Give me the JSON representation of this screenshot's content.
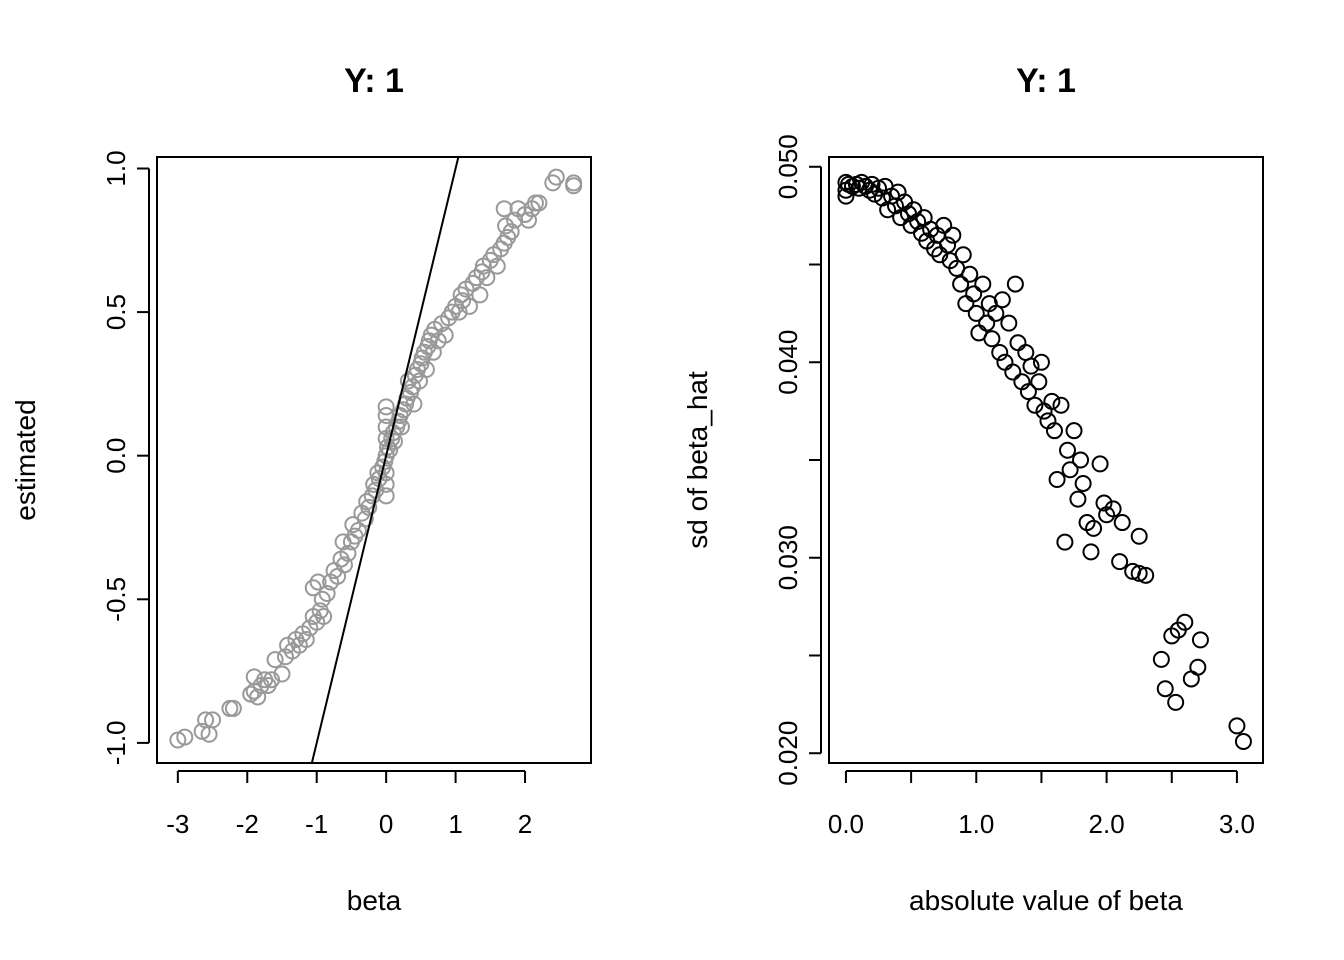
{
  "chart_data": [
    {
      "type": "scatter",
      "title": "Y: 1",
      "xlabel": "beta",
      "ylabel": "estimated",
      "xlim": [
        -3.3,
        2.95
      ],
      "ylim": [
        -1.07,
        1.04
      ],
      "xticks": [
        -3,
        -2,
        -1,
        0,
        1,
        2
      ],
      "xtick_labels": [
        "-3",
        "-2",
        "-1",
        "0",
        "1",
        "2"
      ],
      "yticks": [
        -1.0,
        -0.5,
        0.0,
        0.5,
        1.0
      ],
      "ytick_labels": [
        "-1.0",
        "-0.5",
        "0.0",
        "0.5",
        "1.0"
      ],
      "point_color": "#999999",
      "reference_line": {
        "intercept": 0,
        "slope": 1
      },
      "points": [
        [
          -3.0,
          -0.99
        ],
        [
          -2.9,
          -0.98
        ],
        [
          -2.65,
          -0.96
        ],
        [
          -2.6,
          -0.92
        ],
        [
          -2.5,
          -0.92
        ],
        [
          -2.55,
          -0.97
        ],
        [
          -2.25,
          -0.88
        ],
        [
          -2.2,
          -0.88
        ],
        [
          -1.95,
          -0.83
        ],
        [
          -1.9,
          -0.82
        ],
        [
          -1.85,
          -0.84
        ],
        [
          -1.9,
          -0.77
        ],
        [
          -1.8,
          -0.8
        ],
        [
          -1.75,
          -0.78
        ],
        [
          -1.7,
          -0.8
        ],
        [
          -1.65,
          -0.78
        ],
        [
          -1.6,
          -0.71
        ],
        [
          -1.5,
          -0.76
        ],
        [
          -1.45,
          -0.7
        ],
        [
          -1.42,
          -0.66
        ],
        [
          -1.35,
          -0.68
        ],
        [
          -1.3,
          -0.64
        ],
        [
          -1.25,
          -0.66
        ],
        [
          -1.2,
          -0.62
        ],
        [
          -1.15,
          -0.64
        ],
        [
          -1.1,
          -0.6
        ],
        [
          -1.05,
          -0.56
        ],
        [
          -1.0,
          -0.58
        ],
        [
          -0.95,
          -0.54
        ],
        [
          -0.9,
          -0.56
        ],
        [
          -1.05,
          -0.46
        ],
        [
          -0.98,
          -0.44
        ],
        [
          -0.92,
          -0.5
        ],
        [
          -0.85,
          -0.48
        ],
        [
          -0.8,
          -0.44
        ],
        [
          -0.75,
          -0.4
        ],
        [
          -0.7,
          -0.42
        ],
        [
          -0.65,
          -0.36
        ],
        [
          -0.62,
          -0.3
        ],
        [
          -0.6,
          -0.38
        ],
        [
          -0.55,
          -0.34
        ],
        [
          -0.5,
          -0.3
        ],
        [
          -0.48,
          -0.24
        ],
        [
          -0.45,
          -0.28
        ],
        [
          -0.4,
          -0.26
        ],
        [
          -0.35,
          -0.2
        ],
        [
          -0.3,
          -0.22
        ],
        [
          -0.28,
          -0.16
        ],
        [
          -0.25,
          -0.18
        ],
        [
          -0.2,
          -0.14
        ],
        [
          -0.18,
          -0.1
        ],
        [
          -0.15,
          -0.12
        ],
        [
          -0.12,
          -0.06
        ],
        [
          -0.1,
          -0.08
        ],
        [
          -0.05,
          -0.04
        ],
        [
          -0.02,
          -0.02
        ],
        [
          0.0,
          0.0
        ],
        [
          0.0,
          -0.14
        ],
        [
          0.0,
          -0.1
        ],
        [
          0.0,
          -0.06
        ],
        [
          0.0,
          0.06
        ],
        [
          0.0,
          0.1
        ],
        [
          0.0,
          0.14
        ],
        [
          0.0,
          0.17
        ],
        [
          0.02,
          0.03
        ],
        [
          0.05,
          0.02
        ],
        [
          0.08,
          0.06
        ],
        [
          0.1,
          0.08
        ],
        [
          0.12,
          0.05
        ],
        [
          0.15,
          0.1
        ],
        [
          0.18,
          0.12
        ],
        [
          0.2,
          0.14
        ],
        [
          0.22,
          0.1
        ],
        [
          0.25,
          0.16
        ],
        [
          0.28,
          0.18
        ],
        [
          0.3,
          0.2
        ],
        [
          0.32,
          0.26
        ],
        [
          0.35,
          0.22
        ],
        [
          0.38,
          0.24
        ],
        [
          0.4,
          0.18
        ],
        [
          0.42,
          0.28
        ],
        [
          0.45,
          0.3
        ],
        [
          0.48,
          0.26
        ],
        [
          0.5,
          0.32
        ],
        [
          0.52,
          0.34
        ],
        [
          0.55,
          0.36
        ],
        [
          0.58,
          0.3
        ],
        [
          0.6,
          0.38
        ],
        [
          0.62,
          0.4
        ],
        [
          0.65,
          0.42
        ],
        [
          0.68,
          0.36
        ],
        [
          0.7,
          0.44
        ],
        [
          0.75,
          0.4
        ],
        [
          0.8,
          0.46
        ],
        [
          0.85,
          0.42
        ],
        [
          0.9,
          0.48
        ],
        [
          0.95,
          0.5
        ],
        [
          1.0,
          0.52
        ],
        [
          1.05,
          0.5
        ],
        [
          1.08,
          0.56
        ],
        [
          1.1,
          0.54
        ],
        [
          1.15,
          0.58
        ],
        [
          1.2,
          0.52
        ],
        [
          1.25,
          0.6
        ],
        [
          1.3,
          0.62
        ],
        [
          1.35,
          0.56
        ],
        [
          1.38,
          0.64
        ],
        [
          1.4,
          0.66
        ],
        [
          1.45,
          0.62
        ],
        [
          1.5,
          0.68
        ],
        [
          1.55,
          0.7
        ],
        [
          1.6,
          0.66
        ],
        [
          1.65,
          0.72
        ],
        [
          1.7,
          0.74
        ],
        [
          1.72,
          0.8
        ],
        [
          1.75,
          0.76
        ],
        [
          1.8,
          0.78
        ],
        [
          1.85,
          0.82
        ],
        [
          1.9,
          0.86
        ],
        [
          1.7,
          0.86
        ],
        [
          2.0,
          0.84
        ],
        [
          2.05,
          0.82
        ],
        [
          2.1,
          0.86
        ],
        [
          2.15,
          0.88
        ],
        [
          2.2,
          0.88
        ],
        [
          2.4,
          0.95
        ],
        [
          2.45,
          0.97
        ],
        [
          2.7,
          0.95
        ],
        [
          2.7,
          0.94
        ]
      ]
    },
    {
      "type": "scatter",
      "title": "Y: 1",
      "xlabel": "absolute value of beta",
      "ylabel": "sd of beta_hat",
      "xlim": [
        -0.13,
        3.2
      ],
      "ylim": [
        0.0195,
        0.0505
      ],
      "xticks": [
        0.0,
        0.5,
        1.0,
        1.5,
        2.0,
        2.5,
        3.0
      ],
      "xtick_labels": [
        "0.0",
        "",
        "1.0",
        "",
        "2.0",
        "",
        "3.0"
      ],
      "yticks": [
        0.02,
        0.025,
        0.03,
        0.035,
        0.04,
        0.045,
        0.05
      ],
      "ytick_labels": [
        "0.020",
        "",
        "0.030",
        "",
        "0.040",
        "",
        "0.050"
      ],
      "point_color": "#000000",
      "points": [
        [
          0.0,
          0.0492
        ],
        [
          0.0,
          0.0488
        ],
        [
          0.0,
          0.0485
        ],
        [
          0.02,
          0.0491
        ],
        [
          0.05,
          0.049
        ],
        [
          0.08,
          0.0491
        ],
        [
          0.1,
          0.0489
        ],
        [
          0.12,
          0.0492
        ],
        [
          0.15,
          0.049
        ],
        [
          0.18,
          0.0488
        ],
        [
          0.2,
          0.0491
        ],
        [
          0.22,
          0.0486
        ],
        [
          0.25,
          0.0489
        ],
        [
          0.28,
          0.0484
        ],
        [
          0.3,
          0.049
        ],
        [
          0.32,
          0.0478
        ],
        [
          0.35,
          0.0485
        ],
        [
          0.38,
          0.048
        ],
        [
          0.4,
          0.0487
        ],
        [
          0.42,
          0.0474
        ],
        [
          0.45,
          0.0482
        ],
        [
          0.48,
          0.0476
        ],
        [
          0.5,
          0.047
        ],
        [
          0.52,
          0.0478
        ],
        [
          0.55,
          0.0472
        ],
        [
          0.58,
          0.0466
        ],
        [
          0.6,
          0.0474
        ],
        [
          0.62,
          0.0462
        ],
        [
          0.65,
          0.0468
        ],
        [
          0.68,
          0.0458
        ],
        [
          0.7,
          0.0465
        ],
        [
          0.72,
          0.0455
        ],
        [
          0.75,
          0.047
        ],
        [
          0.78,
          0.046
        ],
        [
          0.8,
          0.0452
        ],
        [
          0.82,
          0.0465
        ],
        [
          0.85,
          0.0448
        ],
        [
          0.88,
          0.044
        ],
        [
          0.9,
          0.0455
        ],
        [
          0.92,
          0.043
        ],
        [
          0.95,
          0.0445
        ],
        [
          0.98,
          0.0435
        ],
        [
          1.0,
          0.0425
        ],
        [
          1.02,
          0.0415
        ],
        [
          1.05,
          0.044
        ],
        [
          1.08,
          0.042
        ],
        [
          1.1,
          0.043
        ],
        [
          1.12,
          0.0412
        ],
        [
          1.15,
          0.0425
        ],
        [
          1.18,
          0.0405
        ],
        [
          1.2,
          0.0432
        ],
        [
          1.22,
          0.04
        ],
        [
          1.25,
          0.042
        ],
        [
          1.28,
          0.0395
        ],
        [
          1.3,
          0.044
        ],
        [
          1.32,
          0.041
        ],
        [
          1.35,
          0.039
        ],
        [
          1.38,
          0.0405
        ],
        [
          1.4,
          0.0385
        ],
        [
          1.42,
          0.0398
        ],
        [
          1.45,
          0.0378
        ],
        [
          1.48,
          0.039
        ],
        [
          1.5,
          0.04
        ],
        [
          1.52,
          0.0375
        ],
        [
          1.55,
          0.037
        ],
        [
          1.58,
          0.038
        ],
        [
          1.6,
          0.0365
        ],
        [
          1.62,
          0.034
        ],
        [
          1.65,
          0.0378
        ],
        [
          1.68,
          0.0308
        ],
        [
          1.7,
          0.0355
        ],
        [
          1.72,
          0.0345
        ],
        [
          1.75,
          0.0365
        ],
        [
          1.78,
          0.033
        ],
        [
          1.8,
          0.035
        ],
        [
          1.82,
          0.0338
        ],
        [
          1.85,
          0.0318
        ],
        [
          1.88,
          0.0303
        ],
        [
          1.9,
          0.0315
        ],
        [
          1.95,
          0.0348
        ],
        [
          1.98,
          0.0328
        ],
        [
          2.0,
          0.0322
        ],
        [
          2.05,
          0.0325
        ],
        [
          2.1,
          0.0298
        ],
        [
          2.12,
          0.0318
        ],
        [
          2.2,
          0.0293
        ],
        [
          2.25,
          0.0292
        ],
        [
          2.3,
          0.0291
        ],
        [
          2.25,
          0.0311
        ],
        [
          2.42,
          0.0248
        ],
        [
          2.45,
          0.0233
        ],
        [
          2.5,
          0.026
        ],
        [
          2.53,
          0.0226
        ],
        [
          2.55,
          0.0263
        ],
        [
          2.6,
          0.0267
        ],
        [
          2.65,
          0.0238
        ],
        [
          2.7,
          0.0244
        ],
        [
          2.72,
          0.0258
        ],
        [
          3.0,
          0.0214
        ],
        [
          3.05,
          0.0206
        ]
      ]
    }
  ]
}
